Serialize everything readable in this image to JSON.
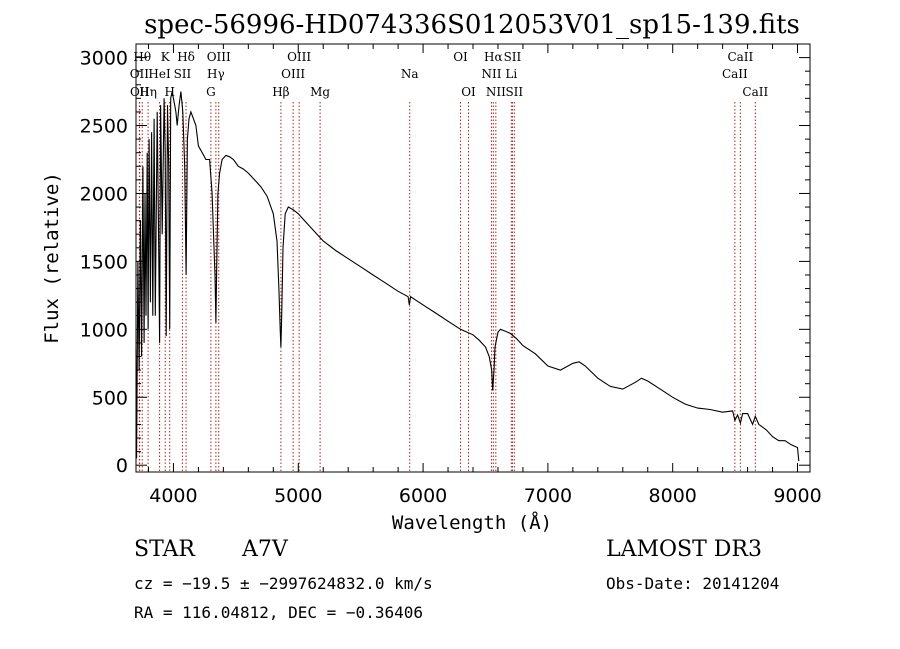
{
  "chart_data": {
    "type": "line",
    "title": "spec-56996-HD074336S012053V01_sp15-139.fits",
    "xlabel": "Wavelength (Å)",
    "ylabel": "Flux (relative)",
    "xlim": [
      3700,
      9100
    ],
    "ylim": [
      -50,
      3100
    ],
    "x_ticks": [
      4000,
      5000,
      6000,
      7000,
      8000,
      9000
    ],
    "y_ticks": [
      0,
      500,
      1000,
      1500,
      2000,
      2500,
      3000
    ],
    "grid": false,
    "series": [
      {
        "name": "Flux",
        "x": [
          3700,
          3705,
          3715,
          3725,
          3735,
          3745,
          3755,
          3765,
          3772,
          3780,
          3790,
          3797,
          3805,
          3815,
          3825,
          3835,
          3845,
          3855,
          3870,
          3882,
          3889,
          3897,
          3910,
          3925,
          3934,
          3942,
          3952,
          3962,
          3970,
          3978,
          3990,
          4000,
          4010,
          4020,
          4030,
          4045,
          4060,
          4075,
          4090,
          4101,
          4112,
          4125,
          4140,
          4160,
          4180,
          4200,
          4230,
          4260,
          4290,
          4310,
          4325,
          4333,
          4340,
          4347,
          4356,
          4370,
          4390,
          4420,
          4450,
          4480,
          4520,
          4560,
          4600,
          4650,
          4700,
          4750,
          4800,
          4830,
          4845,
          4855,
          4861,
          4867,
          4878,
          4895,
          4920,
          4960,
          5000,
          5050,
          5100,
          5150,
          5200,
          5300,
          5400,
          5500,
          5600,
          5700,
          5800,
          5880,
          5890,
          5900,
          5950,
          6000,
          6100,
          6200,
          6300,
          6400,
          6450,
          6500,
          6530,
          6550,
          6558,
          6563,
          6568,
          6576,
          6600,
          6620,
          6650,
          6700,
          6750,
          6800,
          6900,
          7000,
          7100,
          7200,
          7250,
          7300,
          7400,
          7500,
          7600,
          7700,
          7750,
          7800,
          7900,
          8000,
          8100,
          8200,
          8300,
          8400,
          8480,
          8498,
          8520,
          8542,
          8560,
          8600,
          8640,
          8662,
          8690,
          8750,
          8800,
          8850,
          8900,
          8950,
          9000,
          9010
        ],
        "y": [
          850,
          50,
          1500,
          700,
          1800,
          800,
          2200,
          900,
          2000,
          1100,
          2300,
          1000,
          2400,
          1200,
          2450,
          1100,
          2550,
          1100,
          2600,
          1600,
          900,
          2650,
          1700,
          2700,
          2300,
          950,
          2650,
          2200,
          1000,
          2700,
          2750,
          2700,
          2650,
          2600,
          2500,
          2650,
          2750,
          2600,
          2200,
          1400,
          2400,
          2550,
          2600,
          2550,
          2500,
          2350,
          2300,
          2250,
          2250,
          2000,
          1600,
          1400,
          1050,
          1500,
          2000,
          2150,
          2250,
          2280,
          2270,
          2250,
          2200,
          2180,
          2150,
          2100,
          2050,
          1980,
          1850,
          1650,
          1300,
          1000,
          870,
          1100,
          1600,
          1850,
          1900,
          1880,
          1850,
          1800,
          1750,
          1700,
          1650,
          1580,
          1520,
          1460,
          1400,
          1340,
          1280,
          1240,
          1180,
          1240,
          1210,
          1180,
          1120,
          1060,
          1000,
          960,
          920,
          870,
          800,
          700,
          550,
          620,
          700,
          870,
          980,
          1000,
          990,
          970,
          930,
          880,
          820,
          730,
          700,
          750,
          760,
          730,
          640,
          580,
          560,
          610,
          640,
          620,
          560,
          500,
          450,
          420,
          410,
          390,
          400,
          330,
          370,
          310,
          380,
          380,
          300,
          360,
          300,
          260,
          210,
          180,
          180,
          150,
          130,
          30
        ]
      }
    ],
    "line_markers": [
      {
        "wavelength": 3750,
        "label": "Hθ",
        "row": 1
      },
      {
        "wavelength": 3727,
        "label": "OII",
        "row": 2
      },
      {
        "wavelength": 3729,
        "label": "OII",
        "row": 3
      },
      {
        "wavelength": 3797,
        "label": "Hη",
        "row": 3
      },
      {
        "wavelength": 3889,
        "label": "HeI",
        "row": 2
      },
      {
        "wavelength": 3934,
        "label": "K",
        "row": 1
      },
      {
        "wavelength": 3970,
        "label": "H",
        "row": 3
      },
      {
        "wavelength": 4072,
        "label": "SII",
        "row": 2
      },
      {
        "wavelength": 4101,
        "label": "Hδ",
        "row": 1
      },
      {
        "wavelength": 4300,
        "label": "G",
        "row": 3
      },
      {
        "wavelength": 4340,
        "label": "Hγ",
        "row": 2
      },
      {
        "wavelength": 4363,
        "label": "OIII",
        "row": 1
      },
      {
        "wavelength": 4861,
        "label": "Hβ",
        "row": 3
      },
      {
        "wavelength": 4959,
        "label": "OIII",
        "row": 2
      },
      {
        "wavelength": 5007,
        "label": "OIII",
        "row": 1
      },
      {
        "wavelength": 5175,
        "label": "Mg",
        "row": 3
      },
      {
        "wavelength": 5893,
        "label": "Na",
        "row": 2
      },
      {
        "wavelength": 6300,
        "label": "OI",
        "row": 1
      },
      {
        "wavelength": 6364,
        "label": "OI",
        "row": 3
      },
      {
        "wavelength": 6548,
        "label": "NII",
        "row": 2
      },
      {
        "wavelength": 6563,
        "label": "Hα",
        "row": 1
      },
      {
        "wavelength": 6583,
        "label": "NII",
        "row": 3
      },
      {
        "wavelength": 6707,
        "label": "Li",
        "row": 2
      },
      {
        "wavelength": 6716,
        "label": "SII",
        "row": 1
      },
      {
        "wavelength": 6731,
        "label": "SII",
        "row": 3
      },
      {
        "wavelength": 8498,
        "label": "CaII",
        "row": 2
      },
      {
        "wavelength": 8542,
        "label": "CaII",
        "row": 1
      },
      {
        "wavelength": 8662,
        "label": "CaII",
        "row": 3
      }
    ],
    "marker_color": "#b22222"
  },
  "info": {
    "object_type": "STAR",
    "subclass": "A7V",
    "survey": "LAMOST DR3",
    "cz": "cz = −19.5 ± −2997624832.0 km/s",
    "obs_date": "Obs-Date: 20141204",
    "coords": "RA = 116.04812, DEC =  −0.36406"
  }
}
